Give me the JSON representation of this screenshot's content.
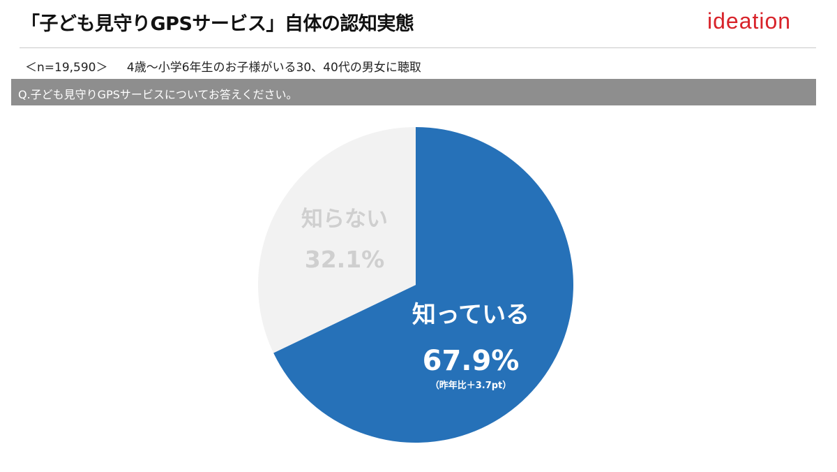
{
  "header": {
    "title": "「子ども見守りGPSサービス」自体の認知実態",
    "logo_text": "ideation"
  },
  "survey": {
    "sample_size": "＜n=19,590＞",
    "respondents": "4歳～小学6年生のお子様がいる30、40代の男女に聴取",
    "question": "Q.子ども見守りGPSサービスについてお答えください。"
  },
  "colors": {
    "known": "#2671b8",
    "unknown": "#f2f2f2",
    "unknown_text": "#cfcfcf",
    "logo": "#d8232a",
    "question_bar": "#8e8e8e"
  },
  "chart_data": {
    "type": "pie",
    "slices": [
      {
        "label": "知っている",
        "value": 67.9,
        "value_label": "67.9%",
        "note": "（昨年比＋3.7pt）",
        "color": "#2671b8"
      },
      {
        "label": "知らない",
        "value": 32.1,
        "value_label": "32.1%",
        "note": "",
        "color": "#f2f2f2"
      }
    ],
    "start": "12 o'clock",
    "direction": "clockwise"
  }
}
